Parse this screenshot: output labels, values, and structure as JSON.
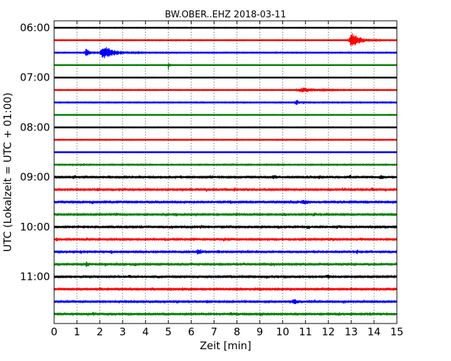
{
  "chart_data": {
    "type": "line",
    "title": "BW.OBER..EHZ 2018-03-11",
    "xlabel": "Zeit  [min]",
    "ylabel": "UTC (Lokalzeit = UTC + 01:00)",
    "xlim": [
      0,
      15
    ],
    "x_ticks": [
      "0",
      "1",
      "2",
      "3",
      "4",
      "5",
      "6",
      "7",
      "8",
      "9",
      "10",
      "11",
      "12",
      "13",
      "14",
      "15"
    ],
    "y_tick_labels": [
      "06:00",
      "07:00",
      "08:00",
      "09:00",
      "10:00",
      "11:00"
    ],
    "grid": "dotted-vertical",
    "trace_start_times": [
      "06:00",
      "06:15",
      "06:30",
      "06:45",
      "07:00",
      "07:15",
      "07:30",
      "07:45",
      "08:00",
      "08:15",
      "08:30",
      "08:45",
      "09:00",
      "09:15",
      "09:30",
      "09:45",
      "10:00",
      "10:15",
      "10:30",
      "10:45",
      "11:00",
      "11:15",
      "11:30",
      "11:45"
    ],
    "trace_colors": [
      "#000000",
      "#ff0000",
      "#0000ff",
      "#008000"
    ],
    "trace_noise": [
      0.5,
      0.6,
      0.7,
      0.5,
      0.5,
      0.6,
      0.7,
      0.5,
      0.5,
      0.6,
      0.5,
      0.8,
      1.4,
      1.4,
      1.3,
      1.3,
      1.4,
      1.4,
      1.4,
      1.4,
      1.3,
      1.3,
      1.3,
      1.4
    ],
    "events": [
      {
        "trace": 1,
        "x": 13.05,
        "amp": 10,
        "width": 0.35
      },
      {
        "trace": 2,
        "x": 2.2,
        "amp": 9,
        "width": 0.45
      },
      {
        "trace": 2,
        "x": 1.4,
        "amp": 6,
        "width": 0.15
      },
      {
        "trace": 3,
        "x": 5.0,
        "amp": 7,
        "width": 0.03
      },
      {
        "trace": 5,
        "x": 10.9,
        "amp": 3,
        "width": 0.6
      },
      {
        "trace": 6,
        "x": 10.6,
        "amp": 4,
        "width": 0.15
      },
      {
        "trace": 12,
        "x": 9.6,
        "amp": 3,
        "width": 0.1
      },
      {
        "trace": 12,
        "x": 14.3,
        "amp": 3,
        "width": 0.1
      },
      {
        "trace": 14,
        "x": 10.9,
        "amp": 3,
        "width": 0.3
      },
      {
        "trace": 18,
        "x": 6.3,
        "amp": 3,
        "width": 0.2
      },
      {
        "trace": 22,
        "x": 10.5,
        "amp": 3,
        "width": 0.2
      },
      {
        "trace": 19,
        "x": 1.4,
        "amp": 3,
        "width": 0.1
      },
      {
        "trace": 20,
        "x": 12.0,
        "amp": 3,
        "width": 0.1
      }
    ]
  }
}
